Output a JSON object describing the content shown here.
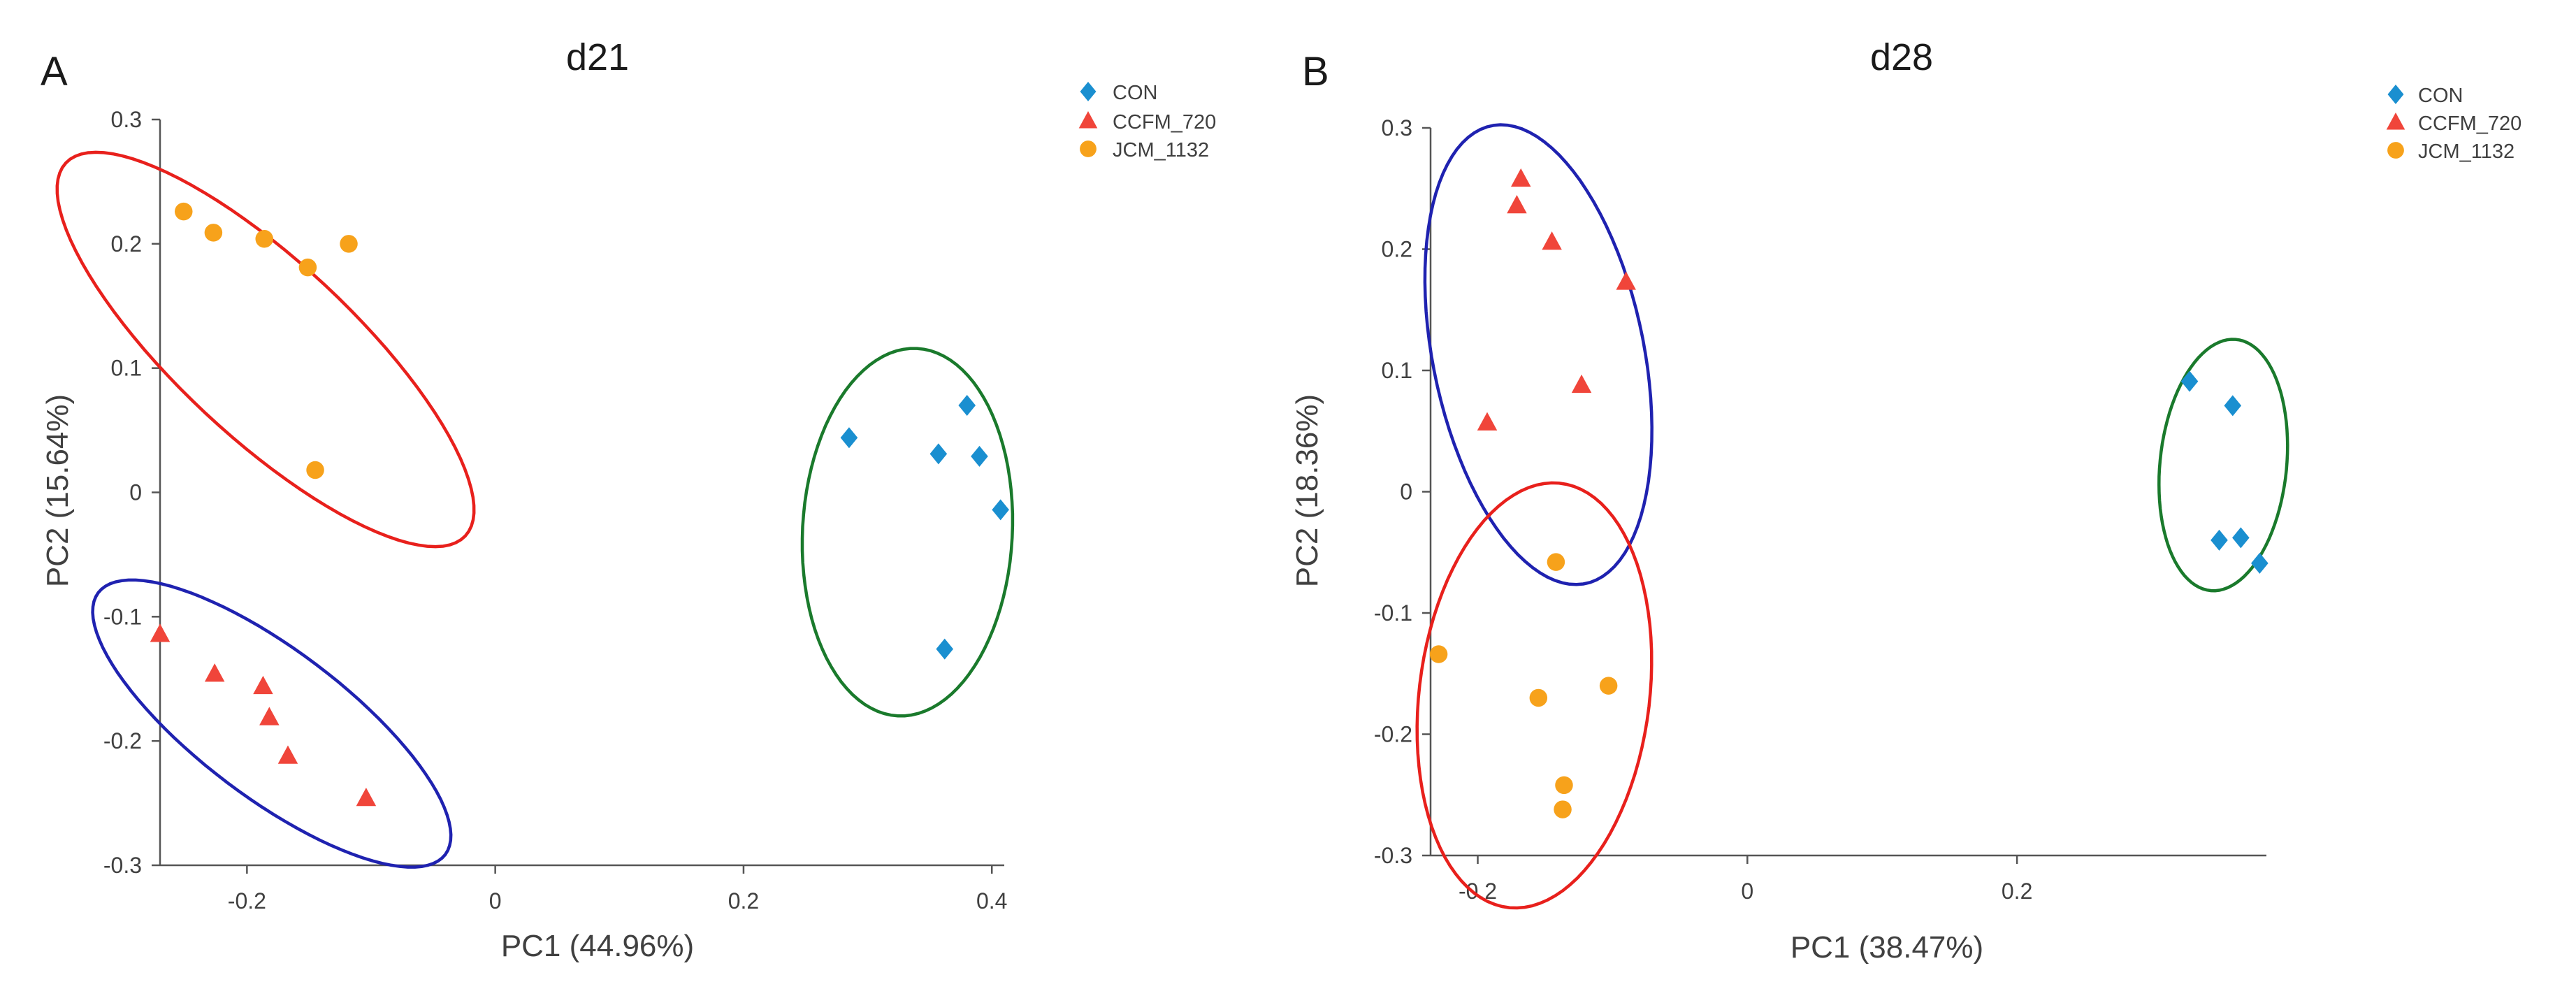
{
  "figure": {
    "panels": [
      {
        "letter": "A"
      },
      {
        "letter": "B"
      }
    ]
  },
  "chart_data": [
    {
      "type": "scatter",
      "title": "d21",
      "xlabel": "PC1 (44.96%)",
      "ylabel": "PC2 (15.64%)",
      "xlim": [
        -0.27,
        0.41
      ],
      "ylim": [
        -0.3,
        0.3
      ],
      "xticks": [
        -0.2,
        0,
        0.2,
        0.4
      ],
      "xtick_labels": [
        "-0.2",
        "0",
        "0.2",
        "0.4"
      ],
      "yticks": [
        -0.3,
        -0.2,
        -0.1,
        0,
        0.1,
        0.2,
        0.3
      ],
      "ytick_labels": [
        "-0.3",
        "-0.2",
        "-0.1",
        "0",
        "0.1",
        "0.2",
        "0.3"
      ],
      "grid": false,
      "legend_position": "top-right",
      "series": [
        {
          "name": "CON",
          "marker": "diamond",
          "color": "#1a8fd0",
          "points": [
            [
              0.285,
              0.044
            ],
            [
              0.357,
              0.031
            ],
            [
              0.38,
              0.07
            ],
            [
              0.39,
              0.029
            ],
            [
              0.407,
              -0.014
            ],
            [
              0.362,
              -0.126
            ]
          ]
        },
        {
          "name": "CCFM_720",
          "marker": "triangle",
          "color": "#f0453a",
          "points": [
            [
              -0.27,
              -0.114
            ],
            [
              -0.226,
              -0.146
            ],
            [
              -0.187,
              -0.156
            ],
            [
              -0.182,
              -0.181
            ],
            [
              -0.167,
              -0.212
            ],
            [
              -0.104,
              -0.246
            ]
          ]
        },
        {
          "name": "JCM_1132",
          "marker": "circle",
          "color": "#f7a21b",
          "points": [
            [
              -0.251,
              0.226
            ],
            [
              -0.227,
              0.209
            ],
            [
              -0.186,
              0.204
            ],
            [
              -0.151,
              0.181
            ],
            [
              -0.118,
              0.2
            ],
            [
              -0.145,
              0.018
            ]
          ]
        }
      ],
      "ellipses": [
        {
          "color": "#1a7a2c",
          "center": [
            0.332,
            -0.032
          ],
          "semi_axes": [
            0.0845,
            0.148
          ],
          "angle_deg": -3
        },
        {
          "color": "#e8201c",
          "center": [
            -0.185,
            0.115
          ],
          "semi_axes": [
            0.22,
            0.0705
          ],
          "angle_deg": -43
        },
        {
          "color": "#1f22b0",
          "center": [
            -0.18,
            -0.186
          ],
          "semi_axes": [
            0.175,
            0.0595
          ],
          "angle_deg": -37
        }
      ]
    },
    {
      "type": "scatter",
      "title": "d28",
      "xlabel": "PC1 (38.47%)",
      "ylabel": "PC2 (18.36%)",
      "xlim": [
        -0.235,
        0.385
      ],
      "ylim": [
        -0.3,
        0.3
      ],
      "xticks": [
        -0.2,
        0,
        0.2
      ],
      "xtick_labels": [
        "-0.2",
        "0",
        "0.2"
      ],
      "yticks": [
        -0.3,
        -0.2,
        -0.1,
        0,
        0.1,
        0.2,
        0.3
      ],
      "ytick_labels": [
        "-0.3",
        "-0.2",
        "-0.1",
        "0",
        "0.1",
        "0.2",
        "0.3"
      ],
      "grid": false,
      "legend_position": "top-right",
      "series": [
        {
          "name": "CON",
          "marker": "diamond",
          "color": "#1a8fd0",
          "points": [
            [
              0.328,
              0.091
            ],
            [
              0.36,
              0.071
            ],
            [
              0.35,
              -0.04
            ],
            [
              0.366,
              -0.038
            ],
            [
              0.38,
              -0.059
            ]
          ]
        },
        {
          "name": "CCFM_720",
          "marker": "triangle",
          "color": "#f0453a",
          "points": [
            [
              -0.168,
              0.258
            ],
            [
              -0.171,
              0.236
            ],
            [
              -0.145,
              0.206
            ],
            [
              -0.09,
              0.173
            ],
            [
              -0.123,
              0.088
            ],
            [
              -0.193,
              0.057
            ]
          ]
        },
        {
          "name": "JCM_1132",
          "marker": "circle",
          "color": "#f7a21b",
          "points": [
            [
              -0.142,
              -0.058
            ],
            [
              -0.229,
              -0.134
            ],
            [
              -0.155,
              -0.17
            ],
            [
              -0.103,
              -0.16
            ],
            [
              -0.136,
              -0.242
            ],
            [
              -0.137,
              -0.262
            ]
          ]
        }
      ],
      "ellipses": [
        {
          "color": "#1f22b0",
          "center": [
            -0.155,
            0.113
          ],
          "semi_axes": [
            0.192,
            0.0785
          ],
          "angle_deg": 100
        },
        {
          "color": "#e8201c",
          "center": [
            -0.158,
            -0.168
          ],
          "semi_axes": [
            0.0855,
            0.176
          ],
          "angle_deg": -6
        },
        {
          "color": "#1a7a2c",
          "center": [
            0.353,
            0.022
          ],
          "semi_axes": [
            0.047,
            0.104
          ],
          "angle_deg": -5
        }
      ]
    }
  ]
}
